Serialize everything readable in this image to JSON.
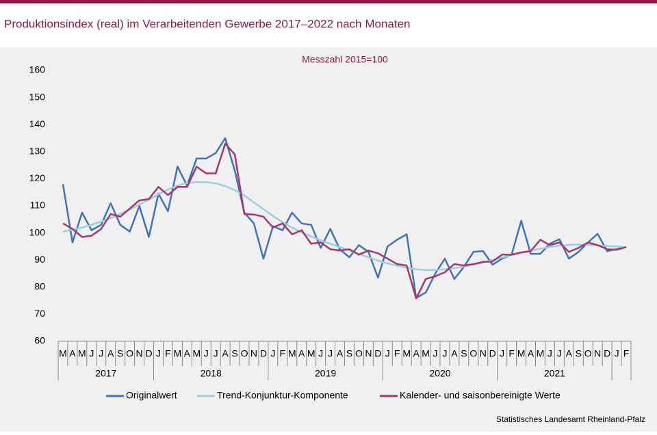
{
  "chart_data": {
    "type": "line",
    "title": "Produktionsindex (real) im Verarbeitenden Gewerbe 2017–2022 nach Monaten",
    "subtitle": "Messzahl 2015=100",
    "source": "Statistisches Landesamt Rheinland-Pfalz",
    "categories": [
      "M",
      "A",
      "M",
      "J",
      "J",
      "A",
      "S",
      "O",
      "N",
      "D",
      "J",
      "F",
      "M",
      "A",
      "M",
      "J",
      "J",
      "A",
      "S",
      "O",
      "N",
      "D",
      "J",
      "F",
      "M",
      "A",
      "M",
      "J",
      "J",
      "A",
      "S",
      "O",
      "N",
      "D",
      "J",
      "F",
      "M",
      "A",
      "M",
      "J",
      "J",
      "A",
      "S",
      "O",
      "N",
      "D",
      "J",
      "F",
      "M",
      "A",
      "M",
      "J",
      "J",
      "A",
      "S",
      "O",
      "N",
      "D",
      "J",
      "F"
    ],
    "years": [
      "2017",
      "2018",
      "2019",
      "2020",
      "2021"
    ],
    "ylim": [
      60,
      160
    ],
    "yticks": [
      60,
      70,
      80,
      90,
      100,
      110,
      120,
      130,
      140,
      150,
      160
    ],
    "grid": false,
    "series": [
      {
        "name": "Originalwert",
        "color": "#3f73b5",
        "values": [
          118,
          96.5,
          107.5,
          101,
          103,
          111,
          103,
          100.5,
          110,
          98.5,
          114.5,
          108,
          124.5,
          117.5,
          127.5,
          127.5,
          129.5,
          135,
          123,
          107.5,
          103.5,
          90.5,
          102.5,
          101,
          107.5,
          103.5,
          103,
          94.5,
          101.5,
          94,
          91,
          95.5,
          93,
          83.5,
          95,
          97.5,
          99.5,
          76,
          78,
          85,
          90.5,
          83,
          87.5,
          93,
          93.3,
          88.3,
          90.5,
          92,
          104.5,
          92.3,
          92.3,
          96,
          97.7,
          90.5,
          93,
          96.5,
          99.7,
          93.3,
          94,
          94.8
        ]
      },
      {
        "name": "Trend-Konjunktur-Komponente",
        "color": "#9dcde3",
        "values": [
          100.5,
          101.2,
          102,
          103,
          104.2,
          105.5,
          107,
          108.7,
          110.5,
          112.3,
          114.3,
          116,
          117.5,
          118.4,
          118.8,
          118.8,
          118.3,
          117.3,
          115.8,
          113.8,
          111.3,
          108.8,
          106.3,
          104,
          102,
          100.2,
          98.7,
          97.3,
          96,
          94.8,
          93.5,
          92.2,
          91,
          89.8,
          88.8,
          87.9,
          87.2,
          86.6,
          86.3,
          86.3,
          86.6,
          87,
          87.6,
          88.3,
          89.1,
          90,
          90.9,
          91.8,
          92.7,
          93.5,
          94.2,
          94.8,
          95.3,
          95.6,
          95.7,
          95.6,
          95.4,
          95.2,
          95,
          94.8
        ]
      },
      {
        "name": "Kalender- und saisonbereinigte Werte",
        "color": "#a3386b",
        "values": [
          103.5,
          101.5,
          98.5,
          99,
          101.5,
          107,
          106,
          109,
          112,
          112.5,
          117,
          114,
          117,
          117,
          124.5,
          122,
          122,
          133,
          129,
          107,
          106.8,
          106,
          102,
          103.5,
          99.5,
          101,
          96,
          96.5,
          94,
          93.5,
          94,
          92,
          93.5,
          92.5,
          90.5,
          88.5,
          88,
          75.8,
          83,
          84,
          85.5,
          88.5,
          88,
          88.5,
          89.3,
          89.5,
          92,
          92,
          92.8,
          93.3,
          97.5,
          95.5,
          96.5,
          93,
          94.5,
          96.5,
          95.5,
          94,
          93.8,
          94.8
        ]
      }
    ]
  }
}
